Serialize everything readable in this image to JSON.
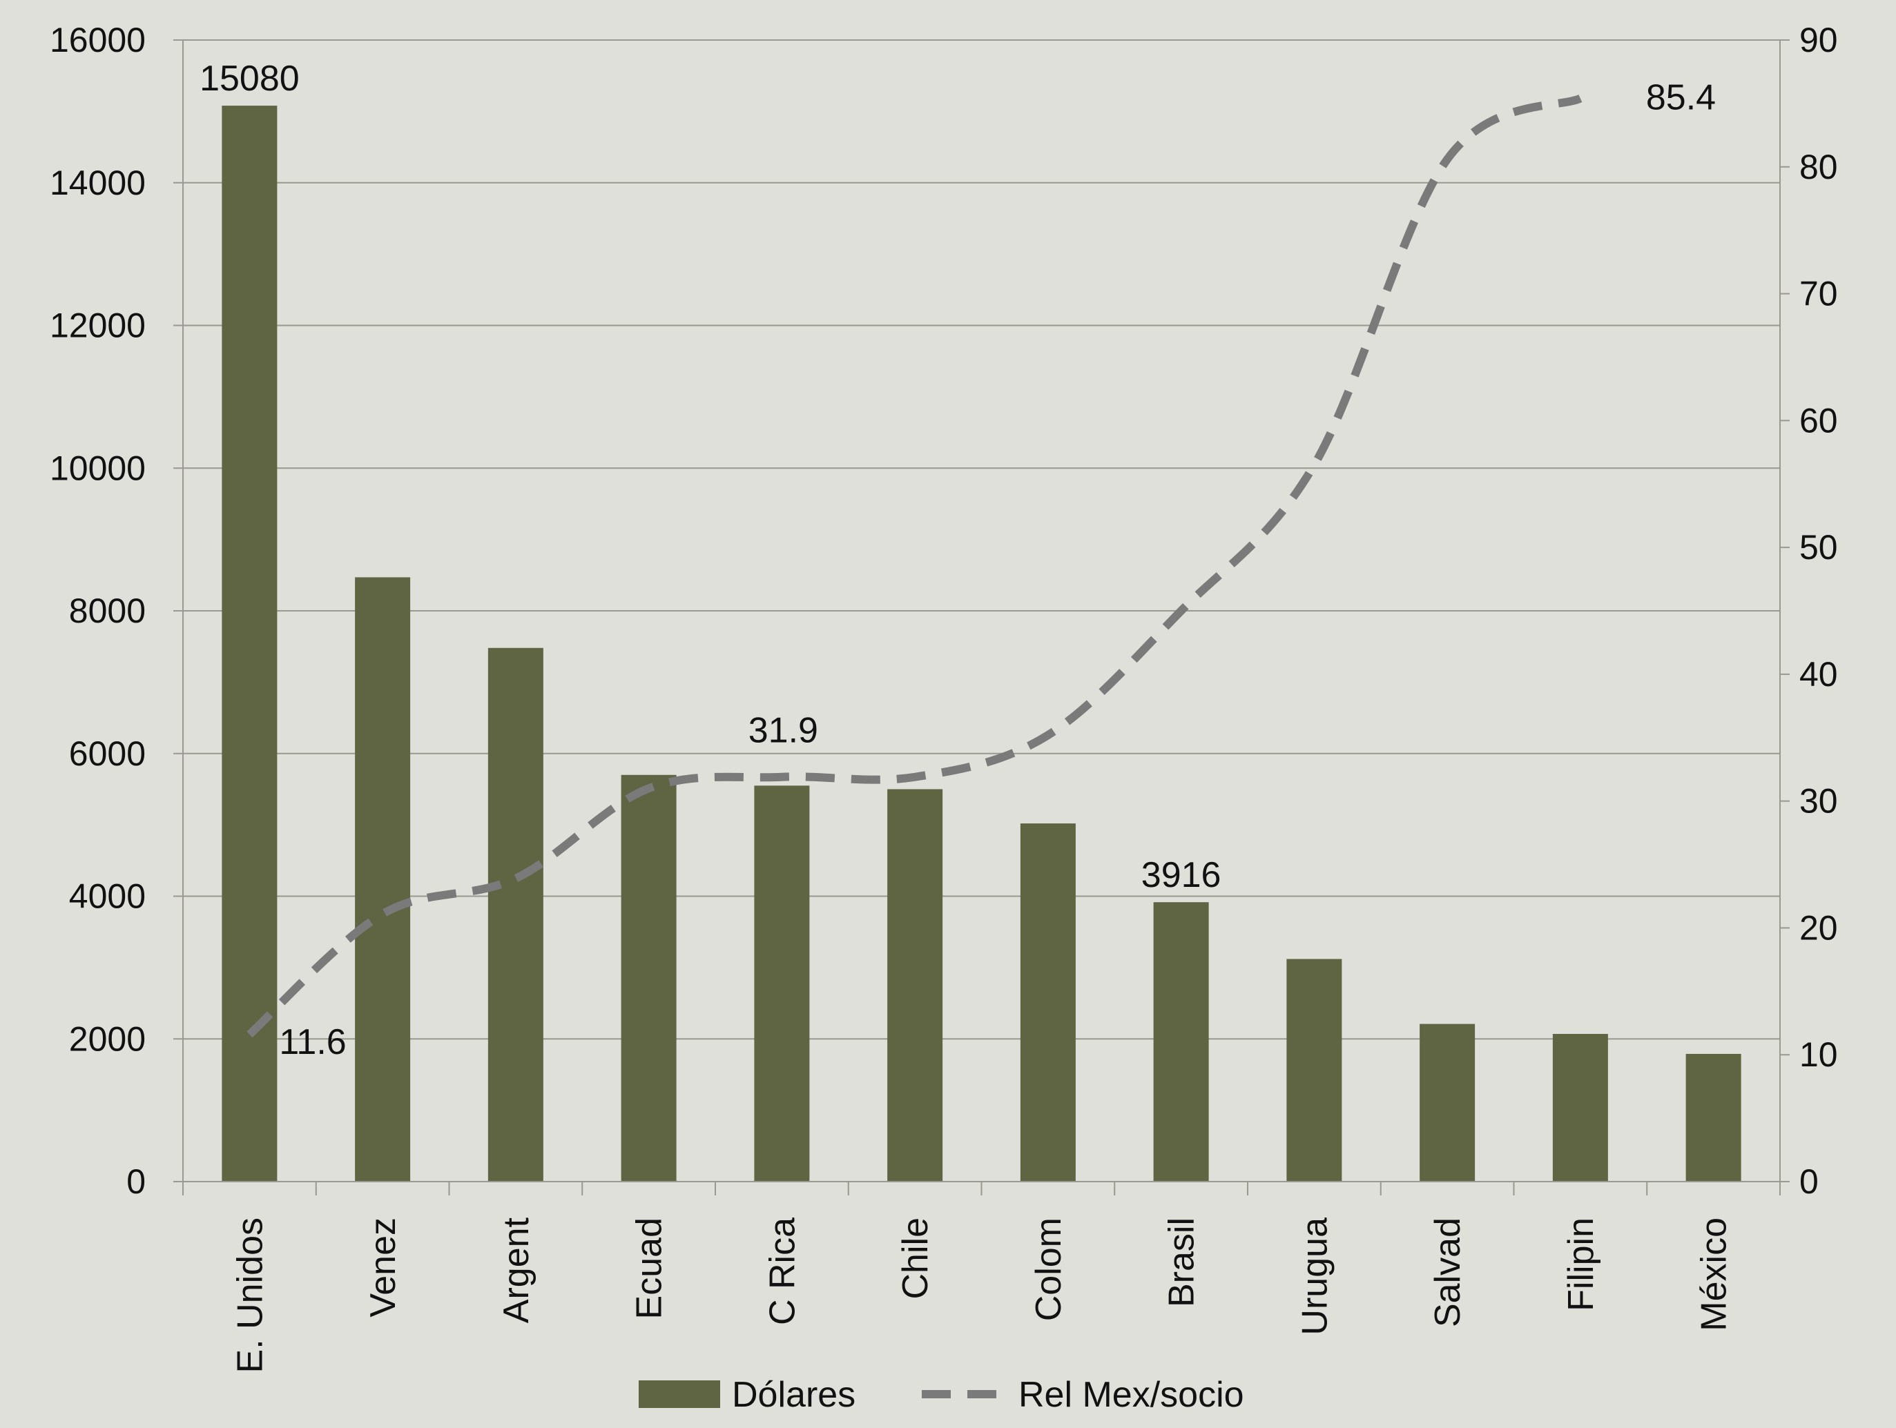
{
  "colors": {
    "background": "#e0e0da",
    "bar": "#5f6443",
    "line": "#7a7a7a",
    "grid": "#999990",
    "axis": "#999990",
    "text": "#111111"
  },
  "chart_data": {
    "type": "bar",
    "categories": [
      "E. Unidos",
      "Venez",
      "Argent",
      "Ecuad",
      "C Rica",
      "Chile",
      "Colom",
      "Brasil",
      "Urugua",
      "Salvad",
      "Filipin",
      "México"
    ],
    "series": [
      {
        "name": "Dólares",
        "type": "bar",
        "axis": "left",
        "values": [
          15080,
          8470,
          7480,
          5700,
          5550,
          5500,
          5020,
          3916,
          3120,
          2210,
          2070,
          1790
        ]
      },
      {
        "name": "Rel Mex/socio",
        "type": "line",
        "style": "dashed",
        "axis": "right",
        "values": [
          11.6,
          21.1,
          23.9,
          31.0,
          31.9,
          31.9,
          35.2,
          45.0,
          56.5,
          80.6,
          85.4,
          null
        ]
      }
    ],
    "data_labels": [
      {
        "series": 0,
        "index": 0,
        "text": "15080"
      },
      {
        "series": 0,
        "index": 7,
        "text": "3916"
      },
      {
        "series": 1,
        "index": 0,
        "text": "11.6"
      },
      {
        "series": 1,
        "index": 4,
        "text": "31.9"
      },
      {
        "series": 1,
        "index": 10,
        "text": "85.4"
      }
    ],
    "y_left": {
      "min": 0,
      "max": 16000,
      "step": 2000,
      "ticks": [
        "0",
        "2000",
        "4000",
        "6000",
        "8000",
        "10000",
        "12000",
        "14000",
        "16000"
      ]
    },
    "y_right": {
      "min": 0,
      "max": 90,
      "step": 10,
      "ticks": [
        "0",
        "10",
        "20",
        "30",
        "40",
        "50",
        "60",
        "70",
        "80",
        "90"
      ]
    },
    "title": "",
    "xlabel": "",
    "ylabel": "",
    "grid": true,
    "legend_position": "bottom"
  }
}
